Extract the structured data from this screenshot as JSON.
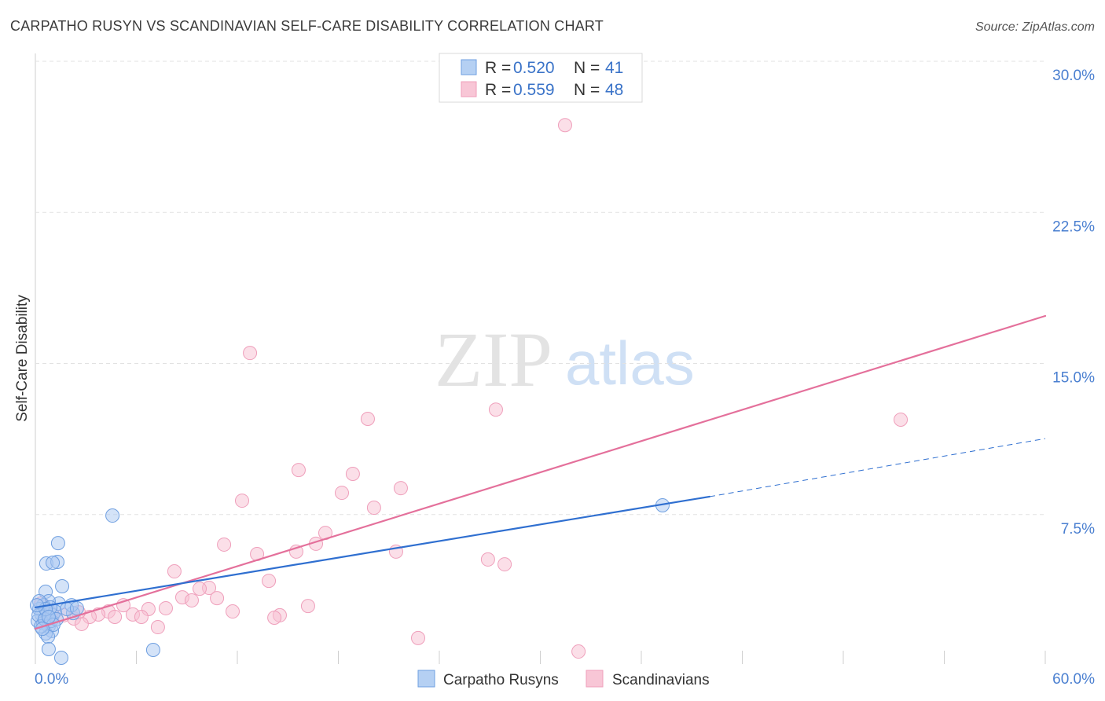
{
  "source": "Source: ZipAtlas.com",
  "watermark": {
    "part1": "ZIP",
    "part2": "atlas"
  },
  "legend": {
    "entries": [
      {
        "r_label": "R =",
        "r": "0.520",
        "n_label": "N =",
        "n": "41",
        "color": "#6f9fe0",
        "fill": "#b5d0f3"
      },
      {
        "r_label": "R =",
        "r": "0.559",
        "n_label": "N =",
        "n": "48",
        "color": "#ef9fbb",
        "fill": "#f8c6d6"
      }
    ]
  },
  "chart_data": {
    "type": "scatter",
    "title": "CARPATHO RUSYN VS SCANDINAVIAN SELF-CARE DISABILITY CORRELATION CHART",
    "ylabel": "Self-Care Disability",
    "xlim": [
      0,
      60
    ],
    "ylim": [
      0,
      30
    ],
    "x_ticks": [
      6,
      12,
      18,
      24,
      30,
      36,
      42,
      48,
      54,
      60
    ],
    "x_tick_labels": [
      "0.0%",
      "60.0%"
    ],
    "y_ticks": [
      7.5,
      15,
      22.5,
      30
    ],
    "y_tick_labels": [
      "7.5%",
      "15.0%",
      "22.5%",
      "30.0%"
    ],
    "grid": true,
    "legend_position": "top-center",
    "series": [
      {
        "name": "Carpatho Rusyns",
        "color": "#6f9fe0",
        "fill": "#a9c8f1",
        "line_color": "#2f6fd0",
        "points": [
          [
            4.58,
            7.45
          ],
          [
            1.35,
            6.08
          ],
          [
            0.65,
            5.07
          ],
          [
            1.31,
            5.15
          ],
          [
            1.03,
            5.11
          ],
          [
            1.59,
            3.94
          ],
          [
            0.61,
            3.67
          ],
          [
            37.26,
            7.96
          ],
          [
            2.24,
            2.61
          ],
          [
            2.15,
            3.0
          ],
          [
            1.4,
            3.08
          ],
          [
            0.79,
            3.2
          ],
          [
            0.47,
            3.0
          ],
          [
            0.23,
            2.81
          ],
          [
            0.37,
            2.54
          ],
          [
            0.7,
            2.61
          ],
          [
            1.03,
            2.5
          ],
          [
            0.14,
            2.22
          ],
          [
            0.47,
            2.11
          ],
          [
            0.79,
            1.95
          ],
          [
            0.98,
            1.72
          ],
          [
            0.61,
            1.6
          ],
          [
            0.75,
            1.44
          ],
          [
            0.79,
            0.82
          ],
          [
            1.54,
            0.39
          ],
          [
            7.0,
            0.78
          ],
          [
            1.17,
            2.69
          ],
          [
            0.89,
            2.89
          ],
          [
            0.19,
            2.5
          ],
          [
            0.33,
            1.95
          ],
          [
            0.56,
            2.3
          ],
          [
            0.93,
            2.22
          ],
          [
            1.26,
            2.3
          ],
          [
            0.23,
            3.2
          ],
          [
            1.87,
            2.81
          ],
          [
            0.61,
            2.81
          ],
          [
            1.07,
            2.03
          ],
          [
            0.42,
            1.83
          ],
          [
            0.79,
            2.42
          ],
          [
            0.09,
            3.0
          ],
          [
            2.47,
            2.85
          ]
        ],
        "trend": {
          "solid": [
            [
              0,
              2.89
            ],
            [
              40.06,
              8.39
            ]
          ],
          "dashed": [
            [
              40.06,
              8.39
            ],
            [
              60,
              11.27
            ]
          ]
        }
      },
      {
        "name": "Scandinavians",
        "color": "#ef9fbb",
        "fill": "#f7bfd1",
        "line_color": "#e4709b",
        "points": [
          [
            31.47,
            26.83
          ],
          [
            12.75,
            15.52
          ],
          [
            19.75,
            12.25
          ],
          [
            27.36,
            12.71
          ],
          [
            51.41,
            12.21
          ],
          [
            15.64,
            9.71
          ],
          [
            18.86,
            9.52
          ],
          [
            21.71,
            8.81
          ],
          [
            18.21,
            8.58
          ],
          [
            12.28,
            8.19
          ],
          [
            20.12,
            7.84
          ],
          [
            17.23,
            6.59
          ],
          [
            16.67,
            6.05
          ],
          [
            11.21,
            6.01
          ],
          [
            15.5,
            5.66
          ],
          [
            13.17,
            5.54
          ],
          [
            21.43,
            5.66
          ],
          [
            26.89,
            5.27
          ],
          [
            27.88,
            5.03
          ],
          [
            8.26,
            4.68
          ],
          [
            13.87,
            4.21
          ],
          [
            10.32,
            3.86
          ],
          [
            9.76,
            3.82
          ],
          [
            8.73,
            3.39
          ],
          [
            9.29,
            3.24
          ],
          [
            10.79,
            3.35
          ],
          [
            5.23,
            3.0
          ],
          [
            7.75,
            2.85
          ],
          [
            6.72,
            2.81
          ],
          [
            16.2,
            2.96
          ],
          [
            11.72,
            2.69
          ],
          [
            4.34,
            2.69
          ],
          [
            3.74,
            2.54
          ],
          [
            5.79,
            2.54
          ],
          [
            4.72,
            2.42
          ],
          [
            3.22,
            2.42
          ],
          [
            6.3,
            2.42
          ],
          [
            14.52,
            2.5
          ],
          [
            14.2,
            2.38
          ],
          [
            2.29,
            2.34
          ],
          [
            2.75,
            2.07
          ],
          [
            7.28,
            1.91
          ],
          [
            22.74,
            1.37
          ],
          [
            32.27,
            0.7
          ],
          [
            2.57,
            2.65
          ],
          [
            0.93,
            2.61
          ],
          [
            1.68,
            2.5
          ],
          [
            0.33,
            3.08
          ]
        ],
        "trend": {
          "solid": [
            [
              0,
              1.83
            ],
            [
              60,
              17.36
            ]
          ]
        }
      }
    ]
  }
}
